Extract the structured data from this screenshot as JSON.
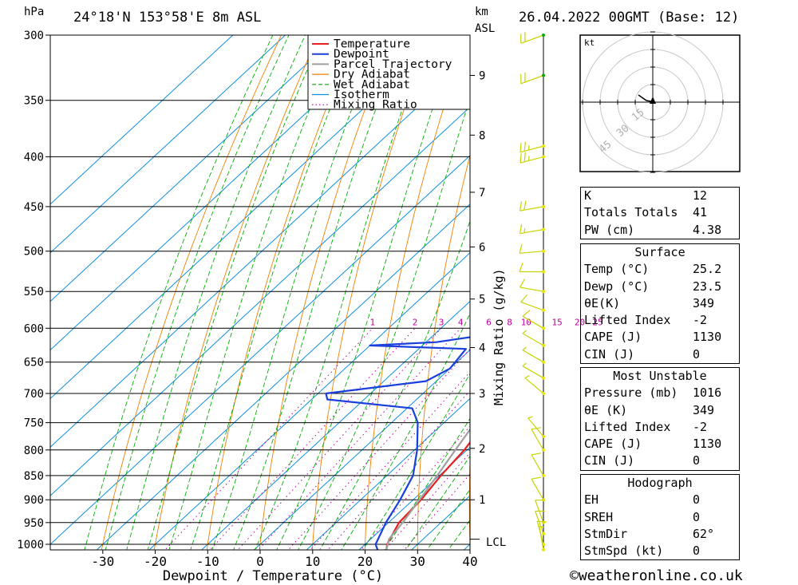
{
  "header": {
    "hpa_unit": "hPa",
    "location": "24°18'N 153°58'E 8m ASL",
    "km_unit": "km",
    "asl_unit": "ASL",
    "datetime": "26.04.2022 00GMT (Base: 12)"
  },
  "legend": [
    {
      "label": "Temperature",
      "color": "#e82020"
    },
    {
      "label": "Dewpoint",
      "color": "#1a3fdc"
    },
    {
      "label": "Parcel Trajectory",
      "color": "#a0a0a0"
    },
    {
      "label": "Dry Adiabat",
      "color": "#f08000"
    },
    {
      "label": "Wet Adiabat",
      "color": "#00b000"
    },
    {
      "label": "Isotherm",
      "color": "#1090e0"
    },
    {
      "label": "Mixing Ratio",
      "color": "#c000a0"
    }
  ],
  "chart_data": {
    "type": "line",
    "title": "24°18'N 153°58'E 8m ASL",
    "xlabel": "Dewpoint / Temperature (°C)",
    "ylabel": "hPa",
    "xlim": [
      -40,
      40
    ],
    "x_ticks": [
      -30,
      -20,
      -10,
      0,
      10,
      20,
      30,
      40
    ],
    "pressure_ticks": [
      300,
      350,
      400,
      450,
      500,
      550,
      600,
      650,
      700,
      750,
      800,
      850,
      900,
      950,
      1000
    ],
    "height_ticks_km": [
      1,
      2,
      3,
      4,
      5,
      6,
      7,
      8,
      9
    ],
    "height_tick_pressures": [
      900,
      797,
      700,
      628,
      560,
      495,
      435,
      380,
      330
    ],
    "lcl_label": "LCL",
    "lcl_pressure": 988,
    "mixing_ratio_label": "Mixing Ratio (g/kg)",
    "mixing_ratio_values": [
      1,
      2,
      3,
      4,
      6,
      8,
      10,
      15,
      20,
      25
    ],
    "series": [
      {
        "name": "Temperature",
        "color": "#e82020",
        "points": [
          [
            1013,
            25.2
          ],
          [
            1000,
            24.2
          ],
          [
            950,
            22
          ],
          [
            900,
            21.5
          ],
          [
            850,
            20.3
          ],
          [
            800,
            19.5
          ],
          [
            750,
            17.8
          ],
          [
            700,
            16.0
          ],
          [
            650,
            13.9
          ],
          [
            600,
            11.5
          ],
          [
            550,
            8.5
          ],
          [
            525,
            7.0
          ],
          [
            500,
            5.0
          ],
          [
            450,
            0.5
          ],
          [
            400,
            -5.0
          ],
          [
            350,
            -13.5
          ],
          [
            300,
            -23.0
          ]
        ]
      },
      {
        "name": "Dewpoint",
        "color": "#1a3fdc",
        "points": [
          [
            1013,
            23.5
          ],
          [
            1000,
            22.0
          ],
          [
            950,
            19.5
          ],
          [
            900,
            17.5
          ],
          [
            850,
            15.0
          ],
          [
            800,
            10.5
          ],
          [
            750,
            5.0
          ],
          [
            725,
            1.0
          ],
          [
            710,
            -17.0
          ],
          [
            700,
            -18.5
          ],
          [
            680,
            -2.0
          ],
          [
            660,
            0.0
          ],
          [
            630,
            -1.0
          ],
          [
            625,
            -20.0
          ],
          [
            620,
            -8.0
          ],
          [
            610,
            -0.5
          ],
          [
            600,
            -0.5
          ],
          [
            560,
            -1.0
          ],
          [
            530,
            -6.0
          ],
          [
            512,
            -9.0
          ],
          [
            505,
            -14.0
          ],
          [
            500,
            -15.0
          ],
          [
            450,
            -22.0
          ],
          [
            420,
            -27.0
          ],
          [
            390,
            -30.0
          ],
          [
            350,
            -37.0
          ],
          [
            300,
            -47.0
          ]
        ]
      },
      {
        "name": "Parcel Trajectory",
        "color": "#a0a0a0",
        "points": [
          [
            1013,
            25.2
          ],
          [
            988,
            23.5
          ],
          [
            950,
            22.7
          ],
          [
            900,
            21.2
          ],
          [
            850,
            19.6
          ],
          [
            800,
            17.8
          ],
          [
            750,
            15.9
          ],
          [
            700,
            13.8
          ],
          [
            650,
            11.4
          ],
          [
            600,
            8.7
          ],
          [
            550,
            5.7
          ],
          [
            500,
            2.2
          ],
          [
            450,
            -1.7
          ],
          [
            400,
            -6.4
          ],
          [
            370,
            -9.8
          ]
        ]
      }
    ]
  },
  "hodograph": {
    "unit": "kt",
    "ring_labels": [
      "15",
      "30",
      "45"
    ]
  },
  "wind_barbs": [
    {
      "p": 300,
      "dir": 250,
      "spd": 20
    },
    {
      "p": 330,
      "dir": 250,
      "spd": 20
    },
    {
      "p": 390,
      "dir": 255,
      "spd": 25
    },
    {
      "p": 400,
      "dir": 255,
      "spd": 25
    },
    {
      "p": 450,
      "dir": 260,
      "spd": 20
    },
    {
      "p": 475,
      "dir": 260,
      "spd": 15
    },
    {
      "p": 500,
      "dir": 265,
      "spd": 10
    },
    {
      "p": 525,
      "dir": 270,
      "spd": 10
    },
    {
      "p": 550,
      "dir": 280,
      "spd": 10
    },
    {
      "p": 575,
      "dir": 290,
      "spd": 10
    },
    {
      "p": 600,
      "dir": 300,
      "spd": 10
    },
    {
      "p": 625,
      "dir": 300,
      "spd": 5
    },
    {
      "p": 650,
      "dir": 300,
      "spd": 5
    },
    {
      "p": 675,
      "dir": 300,
      "spd": 5
    },
    {
      "p": 700,
      "dir": 310,
      "spd": 5
    },
    {
      "p": 775,
      "dir": 320,
      "spd": 5
    },
    {
      "p": 800,
      "dir": 330,
      "spd": 10
    },
    {
      "p": 850,
      "dir": 330,
      "spd": 10
    },
    {
      "p": 900,
      "dir": 330,
      "spd": 10
    },
    {
      "p": 950,
      "dir": 340,
      "spd": 10
    },
    {
      "p": 975,
      "dir": 340,
      "spd": 10
    },
    {
      "p": 1000,
      "dir": 345,
      "spd": 10
    },
    {
      "p": 1013,
      "dir": 350,
      "spd": 5
    }
  ],
  "indices": {
    "rows": [
      {
        "label": "K",
        "value": "12"
      },
      {
        "label": "Totals Totals",
        "value": "41"
      },
      {
        "label": "PW (cm)",
        "value": "4.38"
      }
    ]
  },
  "surface": {
    "title": "Surface",
    "rows": [
      {
        "label": "Temp (°C)",
        "value": "25.2"
      },
      {
        "label": "Dewp (°C)",
        "value": "23.5"
      },
      {
        "label": "θE(K)",
        "value": "349"
      },
      {
        "label": "Lifted Index",
        "value": "-2"
      },
      {
        "label": "CAPE (J)",
        "value": "1130"
      },
      {
        "label": "CIN (J)",
        "value": "0"
      }
    ]
  },
  "most_unstable": {
    "title": "Most Unstable",
    "rows": [
      {
        "label": "Pressure (mb)",
        "value": "1016"
      },
      {
        "label": "θE (K)",
        "value": "349"
      },
      {
        "label": "Lifted Index",
        "value": "-2"
      },
      {
        "label": "CAPE (J)",
        "value": "1130"
      },
      {
        "label": "CIN (J)",
        "value": "0"
      }
    ]
  },
  "hodograph_stats": {
    "title": "Hodograph",
    "rows": [
      {
        "label": "EH",
        "value": "0"
      },
      {
        "label": "SREH",
        "value": "0"
      },
      {
        "label": "StmDir",
        "value": "62°"
      },
      {
        "label": "StmSpd (kt)",
        "value": "0"
      }
    ]
  },
  "footer": {
    "copyright_symbol": "©",
    "site": "weatheronline.co.uk"
  }
}
